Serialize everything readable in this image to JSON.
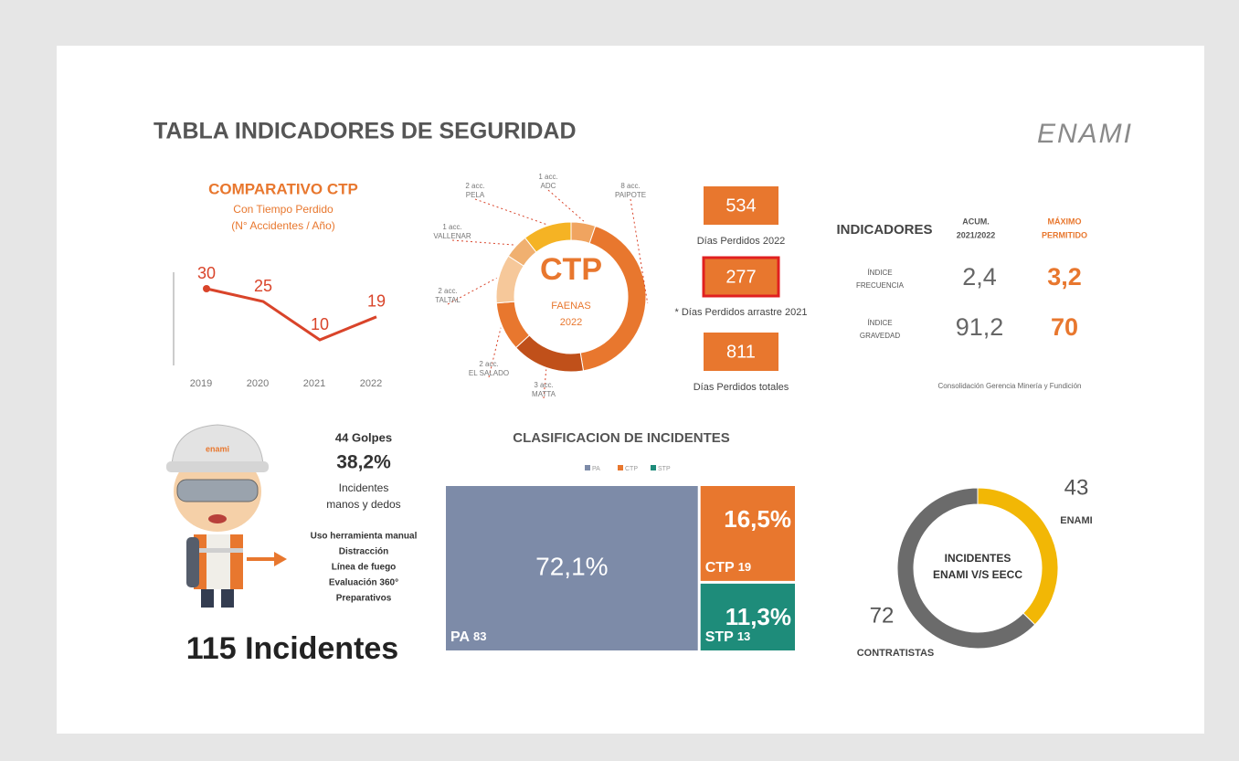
{
  "title": "TABLA INDICADORES DE SEGURIDAD",
  "logo": "ENAMI",
  "chart_data": [
    {
      "type": "line",
      "title": "COMPARATIVO CTP",
      "subtitle": [
        "Con Tiempo Perdido",
        "(N° Accidentes / Año)"
      ],
      "categories": [
        "2019",
        "2020",
        "2021",
        "2022"
      ],
      "values": [
        30,
        25,
        10,
        19
      ],
      "color": "#d9442a",
      "ylim": [
        0,
        40
      ]
    },
    {
      "type": "donut",
      "center_title": "CTP",
      "center_subtitle": [
        "FAENAS",
        "2022"
      ],
      "categories": [
        "ADC",
        "PAIPOTE",
        "MATTA",
        "EL SALADO",
        "TALTAL",
        "VALLENAR",
        "PELA"
      ],
      "values": [
        1,
        8,
        3,
        2,
        2,
        1,
        2
      ],
      "value_labels": [
        "1 acc.",
        "8 acc.",
        "3 acc.",
        "2 acc.",
        "2 acc.",
        "1 acc.",
        "2 acc."
      ],
      "colors": [
        "#f0a460",
        "#e8772e",
        "#c0501a",
        "#e8772e",
        "#f6c89a",
        "#f0b070",
        "#f5b324"
      ]
    },
    {
      "type": "treemap",
      "title": "CLASIFICACION DE INCIDENTES",
      "categories": [
        "PA",
        "CTP",
        "STP"
      ],
      "values": [
        83,
        19,
        13
      ],
      "value_labels": [
        "72,1%",
        "16,5%",
        "11,3%"
      ],
      "colors": [
        "#7d8ba8",
        "#e8772e",
        "#1e8c7a"
      ]
    },
    {
      "type": "donut",
      "center_title": "INCIDENTES",
      "center_subtitle": [
        "ENAMI V/S EECC"
      ],
      "categories": [
        "ENAMI",
        "CONTRATISTAS"
      ],
      "values": [
        43,
        72
      ],
      "colors": [
        "#f2b705",
        "#6b6b6b"
      ]
    }
  ],
  "days_lost": [
    {
      "value": 534,
      "label": "Días Perdidos 2022"
    },
    {
      "value": 277,
      "label": "* Días Perdidos arrastre 2021"
    },
    {
      "value": 811,
      "label": "Días Perdidos totales"
    }
  ],
  "indicators": {
    "header": "INDICADORES",
    "columns": [
      [
        "ACUM.",
        "2021/2022"
      ],
      [
        "MÁXIMO",
        "PERMITIDO"
      ]
    ],
    "rows": [
      {
        "label": [
          "ÍNDICE",
          "FRECUENCIA"
        ],
        "values": [
          "2,4",
          "3,2"
        ]
      },
      {
        "label": [
          "ÍNDICE",
          "GRAVEDAD"
        ],
        "values": [
          "91,2",
          "70"
        ]
      }
    ],
    "note": "Consolidación Gerencia Minería y Fundición"
  },
  "hand_incidents": {
    "count": "44 Golpes",
    "percent": "38,2%",
    "description": [
      "Incidentes",
      "manos y dedos"
    ],
    "causes": [
      "Uso herramienta manual",
      "Distracción",
      "Línea de fuego",
      "Evaluación 360°",
      "Preparativos"
    ]
  },
  "total_incidents": "115 Incidentes"
}
